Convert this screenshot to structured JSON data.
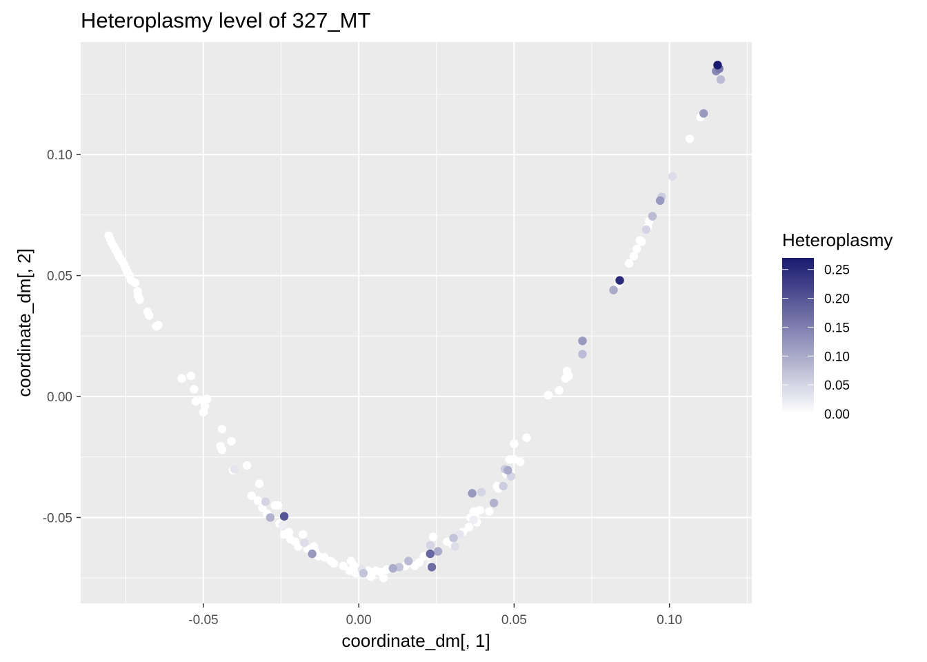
{
  "chart_data": {
    "type": "scatter",
    "title": "Heteroplasmy level of 327_MT",
    "xlabel": "coordinate_dm[, 1]",
    "ylabel": "coordinate_dm[, 2]",
    "xlim": [
      -0.0895,
      0.1265
    ],
    "ylim": [
      -0.0855,
      0.1465
    ],
    "x_ticks": [
      -0.05,
      0.0,
      0.05,
      0.1
    ],
    "x_tick_labels": [
      "-0.05",
      "0.00",
      "0.05",
      "0.10"
    ],
    "y_ticks": [
      -0.05,
      0.0,
      0.05,
      0.1
    ],
    "y_tick_labels": [
      "-0.05",
      "0.00",
      "0.05",
      "0.10"
    ],
    "grid": true,
    "legend": {
      "title": "Heteroplasmy",
      "position": "right",
      "range": [
        0,
        0.27
      ],
      "breaks": [
        0.0,
        0.05,
        0.1,
        0.15,
        0.2,
        0.25
      ],
      "labels": [
        "0.00",
        "0.05",
        "0.10",
        "0.15",
        "0.20",
        "0.25"
      ],
      "low_color": "#ffffff",
      "high_color": "#191970"
    },
    "colors": {
      "panel": "#ebebeb",
      "grid": "#ffffff"
    },
    "points": [
      [
        -0.0805,
        0.0665,
        0.0
      ],
      [
        -0.08,
        0.065,
        0.0
      ],
      [
        -0.0795,
        0.0635,
        0.0
      ],
      [
        -0.0788,
        0.062,
        0.0
      ],
      [
        -0.0782,
        0.0605,
        0.0
      ],
      [
        -0.0775,
        0.059,
        0.0
      ],
      [
        -0.077,
        0.0575,
        0.0
      ],
      [
        -0.0762,
        0.056,
        0.0
      ],
      [
        -0.0755,
        0.0545,
        0.0
      ],
      [
        -0.075,
        0.053,
        0.0
      ],
      [
        -0.0745,
        0.0515,
        0.0
      ],
      [
        -0.0738,
        0.05,
        0.0
      ],
      [
        -0.0732,
        0.048,
        0.0
      ],
      [
        -0.072,
        0.047,
        0.0
      ],
      [
        -0.0712,
        0.0435,
        0.0
      ],
      [
        -0.071,
        0.0415,
        0.0
      ],
      [
        -0.0705,
        0.04,
        0.0
      ],
      [
        -0.068,
        0.035,
        0.0
      ],
      [
        -0.0675,
        0.0335,
        0.0
      ],
      [
        -0.0652,
        0.029,
        0.0
      ],
      [
        -0.0645,
        0.0295,
        0.0
      ],
      [
        -0.057,
        0.0075,
        0.0
      ],
      [
        -0.054,
        0.0085,
        0.0
      ],
      [
        -0.053,
        0.003,
        0.0
      ],
      [
        -0.0525,
        -0.002,
        0.0
      ],
      [
        -0.0505,
        -0.0015,
        0.0
      ],
      [
        -0.05,
        -0.0065,
        0.0
      ],
      [
        -0.0495,
        -0.004,
        0.0
      ],
      [
        -0.0488,
        -0.001,
        0.0
      ],
      [
        -0.044,
        -0.0135,
        0.0
      ],
      [
        -0.0445,
        -0.0205,
        0.0
      ],
      [
        -0.044,
        -0.022,
        0.0
      ],
      [
        -0.041,
        -0.0185,
        0.0
      ],
      [
        -0.04,
        -0.03,
        0.03
      ],
      [
        -0.0405,
        -0.0305,
        0.0
      ],
      [
        -0.036,
        -0.0285,
        0.0
      ],
      [
        -0.032,
        -0.036,
        0.0
      ],
      [
        -0.0345,
        -0.041,
        0.0
      ],
      [
        -0.0325,
        -0.043,
        0.0
      ],
      [
        -0.03,
        -0.0435,
        0.05
      ],
      [
        -0.031,
        -0.046,
        0.0
      ],
      [
        -0.0295,
        -0.0485,
        0.0
      ],
      [
        -0.0285,
        -0.05,
        0.09
      ],
      [
        -0.027,
        -0.045,
        0.0
      ],
      [
        -0.026,
        -0.045,
        0.0
      ],
      [
        -0.024,
        -0.0495,
        0.2
      ],
      [
        -0.0255,
        -0.0525,
        0.0
      ],
      [
        -0.0245,
        -0.053,
        0.02
      ],
      [
        -0.024,
        -0.057,
        0.0
      ],
      [
        -0.0225,
        -0.056,
        0.0
      ],
      [
        -0.022,
        -0.059,
        0.0
      ],
      [
        -0.0205,
        -0.06,
        0.0
      ],
      [
        -0.0195,
        -0.062,
        0.0
      ],
      [
        -0.018,
        -0.057,
        0.0
      ],
      [
        -0.0175,
        -0.0605,
        0.04
      ],
      [
        -0.0165,
        -0.063,
        0.0
      ],
      [
        -0.015,
        -0.065,
        0.12
      ],
      [
        -0.0145,
        -0.062,
        0.0
      ],
      [
        -0.014,
        -0.064,
        0.0
      ],
      [
        -0.013,
        -0.066,
        0.0
      ],
      [
        -0.011,
        -0.0665,
        0.0
      ],
      [
        -0.009,
        -0.068,
        0.0
      ],
      [
        -0.008,
        -0.069,
        0.0
      ],
      [
        -0.005,
        -0.07,
        0.0
      ],
      [
        -0.003,
        -0.072,
        0.0
      ],
      [
        -0.0025,
        -0.068,
        0.0
      ],
      [
        -0.0015,
        -0.07,
        0.0
      ],
      [
        -0.001,
        -0.073,
        0.0
      ],
      [
        0.0,
        -0.072,
        0.0
      ],
      [
        0.001,
        -0.0715,
        0.03
      ],
      [
        0.0015,
        -0.073,
        0.07
      ],
      [
        0.003,
        -0.072,
        0.0
      ],
      [
        0.0035,
        -0.0735,
        0.0
      ],
      [
        0.004,
        -0.0745,
        0.0
      ],
      [
        0.0055,
        -0.072,
        0.0
      ],
      [
        0.007,
        -0.0725,
        0.0
      ],
      [
        0.008,
        -0.075,
        0.0
      ],
      [
        0.009,
        -0.0715,
        0.0
      ],
      [
        0.011,
        -0.071,
        0.1
      ],
      [
        0.013,
        -0.0705,
        0.07
      ],
      [
        0.015,
        -0.07,
        0.0
      ],
      [
        0.016,
        -0.068,
        0.08
      ],
      [
        0.018,
        -0.07,
        0.0
      ],
      [
        0.0195,
        -0.0685,
        0.0
      ],
      [
        0.021,
        -0.066,
        0.0
      ],
      [
        0.0225,
        -0.066,
        0.0
      ],
      [
        0.023,
        -0.065,
        0.18
      ],
      [
        0.023,
        -0.07,
        0.0
      ],
      [
        0.0235,
        -0.0705,
        0.17
      ],
      [
        0.024,
        -0.058,
        0.0
      ],
      [
        0.023,
        -0.0615,
        0.05
      ],
      [
        0.0255,
        -0.064,
        0.1
      ],
      [
        0.0285,
        -0.06,
        0.0
      ],
      [
        0.03,
        -0.061,
        0.0
      ],
      [
        0.0305,
        -0.0585,
        0.07
      ],
      [
        0.031,
        -0.062,
        0.04
      ],
      [
        0.0325,
        -0.057,
        0.03
      ],
      [
        0.0335,
        -0.056,
        0.0
      ],
      [
        0.0355,
        -0.054,
        0.0
      ],
      [
        0.036,
        -0.05,
        0.0
      ],
      [
        0.0365,
        -0.04,
        0.12
      ],
      [
        0.037,
        -0.0475,
        0.0
      ],
      [
        0.0375,
        -0.049,
        0.0
      ],
      [
        0.037,
        -0.051,
        0.02
      ],
      [
        0.038,
        -0.052,
        0.0
      ],
      [
        0.0395,
        -0.0395,
        0.05
      ],
      [
        0.039,
        -0.047,
        0.0
      ],
      [
        0.042,
        -0.0475,
        0.0
      ],
      [
        0.0435,
        -0.044,
        0.09
      ],
      [
        0.0445,
        -0.037,
        0.0
      ],
      [
        0.045,
        -0.038,
        0.0
      ],
      [
        0.0465,
        -0.037,
        0.06
      ],
      [
        0.047,
        -0.03,
        0.06
      ],
      [
        0.0475,
        -0.032,
        0.0
      ],
      [
        0.048,
        -0.0305,
        0.1
      ],
      [
        0.0485,
        -0.031,
        0.0
      ],
      [
        0.049,
        -0.033,
        0.05
      ],
      [
        0.0485,
        -0.026,
        0.0
      ],
      [
        0.05,
        -0.026,
        0.0
      ],
      [
        0.05,
        -0.0195,
        0.0
      ],
      [
        0.052,
        -0.027,
        0.0
      ],
      [
        0.054,
        -0.017,
        0.0
      ],
      [
        0.061,
        0.0005,
        0.0
      ],
      [
        0.0645,
        0.0025,
        0.0
      ],
      [
        0.0665,
        0.0075,
        0.0
      ],
      [
        0.067,
        0.0105,
        0.0
      ],
      [
        0.0675,
        0.0085,
        0.0
      ],
      [
        0.072,
        0.023,
        0.12
      ],
      [
        0.072,
        0.0175,
        0.08
      ],
      [
        0.082,
        0.044,
        0.1
      ],
      [
        0.0835,
        0.0465,
        0.0
      ],
      [
        0.084,
        0.048,
        0.25
      ],
      [
        0.087,
        0.055,
        0.0
      ],
      [
        0.0885,
        0.058,
        0.0
      ],
      [
        0.0895,
        0.061,
        0.0
      ],
      [
        0.0905,
        0.0645,
        0.0
      ],
      [
        0.091,
        0.064,
        0.0
      ],
      [
        0.0925,
        0.069,
        0.05
      ],
      [
        0.093,
        0.07,
        0.0
      ],
      [
        0.0935,
        0.0725,
        0.0
      ],
      [
        0.0945,
        0.0745,
        0.08
      ],
      [
        0.097,
        0.081,
        0.12
      ],
      [
        0.0975,
        0.0825,
        0.06
      ],
      [
        0.101,
        0.091,
        0.04
      ],
      [
        0.1065,
        0.1065,
        0.0
      ],
      [
        0.11,
        0.1155,
        0.0
      ],
      [
        0.111,
        0.117,
        0.12
      ],
      [
        0.115,
        0.1345,
        0.14
      ],
      [
        0.1155,
        0.137,
        0.27
      ],
      [
        0.116,
        0.1355,
        0.16
      ],
      [
        0.1165,
        0.131,
        0.08
      ]
    ]
  }
}
